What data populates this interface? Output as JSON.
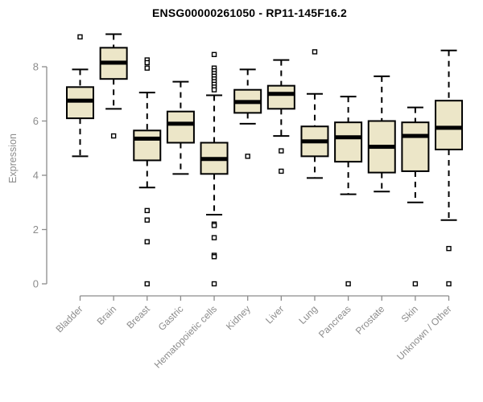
{
  "title": "ENSG00000261050 - RP11-145F16.2",
  "ylabel": "Expression",
  "colors": {
    "box_fill": "#ECE6C8",
    "line": "#000000",
    "axis": "#8C8C8C",
    "background": "#FFFFFF",
    "title_text": "#000000"
  },
  "chart_data": {
    "type": "boxplot",
    "title": "ENSG00000261050 - RP11-145F16.2",
    "xlabel": "",
    "ylabel": "Expression",
    "ylim": [
      0,
      9.3
    ],
    "yticks": [
      0,
      2,
      4,
      6,
      8
    ],
    "grid": false,
    "legend": "none",
    "categories": [
      "Bladder",
      "Brain",
      "Breast",
      "Gastric",
      "Hematopoietic cells",
      "Kidney",
      "Liver",
      "Lung",
      "Pancreas",
      "Prostate",
      "Skin",
      "Unknown / Other"
    ],
    "series": [
      {
        "name": "Bladder",
        "whisker_low": 4.7,
        "q1": 6.1,
        "median": 6.75,
        "q3": 7.25,
        "whisker_high": 7.9,
        "outliers": [
          9.1
        ]
      },
      {
        "name": "Brain",
        "whisker_low": 6.45,
        "q1": 7.55,
        "median": 8.15,
        "q3": 8.7,
        "whisker_high": 9.2,
        "outliers": [
          5.45
        ]
      },
      {
        "name": "Breast",
        "whisker_low": 3.55,
        "q1": 4.55,
        "median": 5.35,
        "q3": 5.65,
        "whisker_high": 7.05,
        "outliers": [
          8.25,
          8.15,
          7.95,
          2.7,
          2.35,
          1.55,
          0
        ]
      },
      {
        "name": "Gastric",
        "whisker_low": 4.05,
        "q1": 5.2,
        "median": 5.9,
        "q3": 6.35,
        "whisker_high": 7.45,
        "outliers": []
      },
      {
        "name": "Hematopoietic cells",
        "whisker_low": 2.55,
        "q1": 4.05,
        "median": 4.6,
        "q3": 5.2,
        "whisker_high": 6.95,
        "outliers": [
          8.45,
          7.95,
          7.85,
          7.75,
          7.65,
          7.55,
          7.45,
          7.35,
          7.25,
          7.15,
          2.2,
          2.15,
          1.7,
          1.05,
          1.0,
          0
        ]
      },
      {
        "name": "Kidney",
        "whisker_low": 5.9,
        "q1": 6.3,
        "median": 6.7,
        "q3": 7.15,
        "whisker_high": 7.9,
        "outliers": [
          4.7
        ]
      },
      {
        "name": "Liver",
        "whisker_low": 5.45,
        "q1": 6.45,
        "median": 7.0,
        "q3": 7.3,
        "whisker_high": 8.25,
        "outliers": [
          4.9,
          4.15
        ]
      },
      {
        "name": "Lung",
        "whisker_low": 3.9,
        "q1": 4.7,
        "median": 5.25,
        "q3": 5.8,
        "whisker_high": 7.0,
        "outliers": [
          8.55
        ]
      },
      {
        "name": "Pancreas",
        "whisker_low": 3.3,
        "q1": 4.5,
        "median": 5.4,
        "q3": 5.95,
        "whisker_high": 6.9,
        "outliers": [
          0
        ]
      },
      {
        "name": "Prostate",
        "whisker_low": 3.4,
        "q1": 4.1,
        "median": 5.05,
        "q3": 6.0,
        "whisker_high": 7.65,
        "outliers": []
      },
      {
        "name": "Skin",
        "whisker_low": 3.0,
        "q1": 4.15,
        "median": 5.45,
        "q3": 5.95,
        "whisker_high": 6.5,
        "outliers": [
          0
        ]
      },
      {
        "name": "Unknown / Other",
        "whisker_low": 2.35,
        "q1": 4.95,
        "median": 5.75,
        "q3": 6.75,
        "whisker_high": 8.6,
        "outliers": [
          1.3,
          0
        ]
      }
    ]
  }
}
